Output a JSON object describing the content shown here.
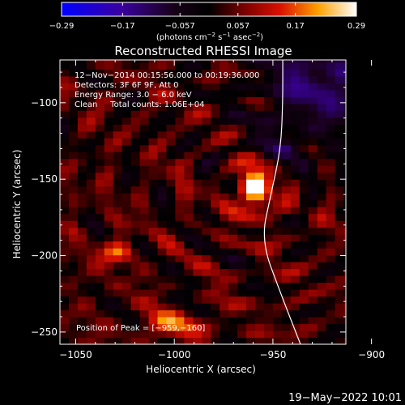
{
  "chart_data": {
    "type": "heatmap",
    "title": "Reconstructed RHESSI Image",
    "xlabel": "Heliocentric X (arcsec)",
    "ylabel": "Heliocentric Y (arcsec)",
    "xlim": [
      -1058,
      -913
    ],
    "ylim": [
      -258,
      -72
    ],
    "x_ticks": [
      -1050,
      -1000,
      -950,
      -900
    ],
    "x_tick_labels": [
      "−1050",
      "−1000",
      "−950",
      "−900"
    ],
    "y_ticks": [
      -100,
      -150,
      -200,
      -250
    ],
    "y_tick_labels": [
      "−100",
      "−150",
      "−200",
      "−250"
    ],
    "colorbar": {
      "colormap": "hot-blue (IDL Rainbow+Hot)",
      "min": -0.29,
      "max": 0.29,
      "tick_values": [
        -0.29,
        -0.17,
        -0.057,
        0.057,
        0.17,
        0.29
      ],
      "tick_labels": [
        "−0.29",
        "−0.17",
        "−0.057",
        "0.057",
        "0.17",
        "0.29"
      ],
      "units_parts": [
        "(photons cm",
        "−2",
        " s",
        "−1",
        " asec",
        "−2",
        ")"
      ]
    },
    "peak": {
      "x": -959,
      "y": -160
    },
    "sources": [
      {
        "x": -959,
        "y": -156,
        "sx": 6,
        "sy": 10,
        "amp": 0.29
      },
      {
        "x": -1030,
        "y": -198,
        "sx": 6,
        "sy": 5,
        "amp": 0.16
      },
      {
        "x": -1000,
        "y": -245,
        "sx": 12,
        "sy": 6,
        "amp": 0.13
      }
    ],
    "limb_curve": [
      {
        "x": -945,
        "y": -72
      },
      {
        "x": -945,
        "y": -100
      },
      {
        "x": -946,
        "y": -130
      },
      {
        "x": -951,
        "y": -160
      },
      {
        "x": -956,
        "y": -190
      },
      {
        "x": -946,
        "y": -225
      },
      {
        "x": -936,
        "y": -258
      }
    ],
    "annotations": [
      "12−Nov−2014 00:15:56.000 to 00:19:36.000",
      "Detectors: 3F 6F 9F, Att 0",
      "Energy Range: 3.0 − 6.0 keV",
      "Clean     Total counts: 1.06E+04"
    ],
    "peak_label": "Position of Peak = [−959,−160]"
  },
  "footer": {
    "timestamp": "19−May−2022 10:01"
  },
  "colors": {
    "background": "#000000",
    "text": "#ffffff",
    "limb": "#ffffff"
  }
}
